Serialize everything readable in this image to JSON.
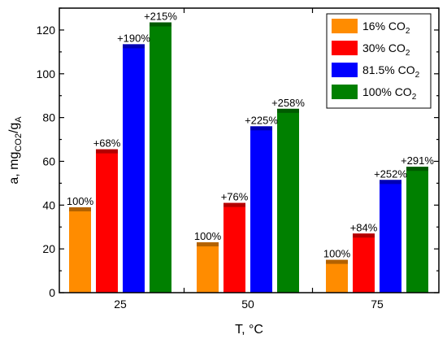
{
  "chart_data": {
    "type": "bar",
    "xlabel": "T, °C",
    "ylabel": {
      "main": "a, mg",
      "sub1": "CO2",
      "mid": "/g",
      "sub2": "A"
    },
    "categories": [
      "25",
      "50",
      "75"
    ],
    "ylim": [
      0,
      130
    ],
    "yticks": [
      0,
      20,
      40,
      60,
      80,
      100,
      120
    ],
    "series": [
      {
        "name": "16% CO2",
        "legend_main": "16% CO",
        "legend_sub": "2",
        "color": "#FF8C00",
        "values": [
          39,
          23,
          15
        ],
        "labels": [
          "100%",
          "100%",
          "100%"
        ]
      },
      {
        "name": "30% CO2",
        "legend_main": "30% CO",
        "legend_sub": "2",
        "color": "#FF0000",
        "values": [
          65.5,
          41,
          27
        ],
        "labels": [
          "+68%",
          "+76%",
          "+84%"
        ]
      },
      {
        "name": "81.5% CO2",
        "legend_main": "81.5% CO",
        "legend_sub": "2",
        "color": "#0000FF",
        "values": [
          113.5,
          76,
          51.5
        ],
        "labels": [
          "+190%",
          "+225%",
          "+252%"
        ]
      },
      {
        "name": "100% CO2",
        "legend_main": "100% CO",
        "legend_sub": "2",
        "color": "#008000",
        "values": [
          123.5,
          84,
          57.5
        ],
        "labels": [
          "+215%",
          "+258%",
          "+291%"
        ]
      }
    ],
    "legend_position": "top-right",
    "grid": false
  }
}
